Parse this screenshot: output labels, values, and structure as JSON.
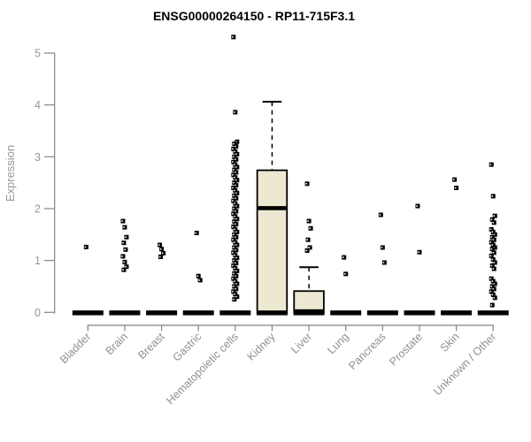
{
  "chart_data": {
    "type": "boxplot",
    "title": "ENSG00000264150 - RP11-715F3.1",
    "ylabel": "Expression",
    "xlabel": "",
    "ylim": [
      0,
      5.4
    ],
    "yticks": [
      0,
      1,
      2,
      3,
      4,
      5
    ],
    "grid": false,
    "legend": null,
    "categories": [
      "Bladder",
      "Brain",
      "Breast",
      "Gastric",
      "Hematopoietic cells",
      "Kidney",
      "Liver",
      "Lung",
      "Pancreas",
      "Prostate",
      "Skin",
      "Unknown / Other"
    ],
    "colors": {
      "box_fill": "#EDE8D2",
      "box_stroke": "#000000",
      "median": "#000000",
      "outlier": "#000000",
      "axis": "#858585",
      "tick_label": "#969696",
      "category_label": "#8f8f8f",
      "title": "#000000",
      "background": "#ffffff"
    },
    "series": [
      {
        "name": "Bladder",
        "q1": 0,
        "median": 0,
        "q3": 0,
        "whisker_low": 0,
        "whisker_high": 0,
        "outliers": [
          1.26
        ]
      },
      {
        "name": "Brain",
        "q1": 0,
        "median": 0,
        "q3": 0,
        "whisker_low": 0,
        "whisker_high": 0,
        "outliers": [
          1.76,
          1.64,
          1.45,
          1.34,
          1.21,
          1.08,
          0.97,
          0.88,
          0.82
        ]
      },
      {
        "name": "Breast",
        "q1": 0,
        "median": 0,
        "q3": 0,
        "whisker_low": 0,
        "whisker_high": 0,
        "outliers": [
          1.3,
          1.22,
          1.14,
          1.07
        ]
      },
      {
        "name": "Gastric",
        "q1": 0,
        "median": 0,
        "q3": 0,
        "whisker_low": 0,
        "whisker_high": 0,
        "outliers": [
          1.53,
          0.7,
          0.62
        ]
      },
      {
        "name": "Hematopoietic cells",
        "q1": 0,
        "median": 0,
        "q3": 0,
        "whisker_low": 0,
        "whisker_high": 0,
        "outliers": [
          5.31,
          3.86,
          3.29,
          3.25,
          3.2,
          3.15,
          3.1,
          3.05,
          3.0,
          2.95,
          2.9,
          2.85,
          2.8,
          2.75,
          2.7,
          2.65,
          2.6,
          2.55,
          2.5,
          2.45,
          2.4,
          2.35,
          2.3,
          2.25,
          2.2,
          2.15,
          2.1,
          2.05,
          2.0,
          1.95,
          1.9,
          1.85,
          1.8,
          1.75,
          1.7,
          1.65,
          1.6,
          1.55,
          1.5,
          1.45,
          1.4,
          1.35,
          1.3,
          1.25,
          1.2,
          1.15,
          1.1,
          1.05,
          1.0,
          0.95,
          0.9,
          0.85,
          0.8,
          0.75,
          0.7,
          0.65,
          0.6,
          0.55,
          0.5,
          0.45,
          0.4,
          0.35,
          0.3,
          0.25
        ]
      },
      {
        "name": "Kidney",
        "q1": 0,
        "median": 2.01,
        "q3": 2.74,
        "whisker_low": 0,
        "whisker_high": 4.06,
        "outliers": []
      },
      {
        "name": "Liver",
        "q1": 0,
        "median": 0.02,
        "q3": 0.41,
        "whisker_low": 0,
        "whisker_high": 0.87,
        "outliers": [
          2.48,
          1.76,
          1.62,
          1.4,
          1.25,
          1.19
        ]
      },
      {
        "name": "Lung",
        "q1": 0,
        "median": 0,
        "q3": 0,
        "whisker_low": 0,
        "whisker_high": 0,
        "outliers": [
          1.06,
          0.74
        ]
      },
      {
        "name": "Pancreas",
        "q1": 0,
        "median": 0,
        "q3": 0,
        "whisker_low": 0,
        "whisker_high": 0,
        "outliers": [
          1.88,
          1.25,
          0.96
        ]
      },
      {
        "name": "Prostate",
        "q1": 0,
        "median": 0,
        "q3": 0,
        "whisker_low": 0,
        "whisker_high": 0,
        "outliers": [
          2.05,
          1.16
        ]
      },
      {
        "name": "Skin",
        "q1": 0,
        "median": 0,
        "q3": 0,
        "whisker_low": 0,
        "whisker_high": 0,
        "outliers": [
          2.56,
          2.4
        ]
      },
      {
        "name": "Unknown / Other",
        "q1": 0,
        "median": 0,
        "q3": 0,
        "whisker_low": 0,
        "whisker_high": 0,
        "outliers": [
          2.85,
          2.24,
          1.86,
          1.79,
          1.73,
          1.6,
          1.55,
          1.5,
          1.45,
          1.4,
          1.35,
          1.3,
          1.25,
          1.22,
          1.15,
          1.09,
          1.02,
          0.96,
          0.9,
          0.84,
          0.65,
          0.6,
          0.55,
          0.5,
          0.45,
          0.4,
          0.34,
          0.28,
          0.14
        ]
      }
    ]
  }
}
